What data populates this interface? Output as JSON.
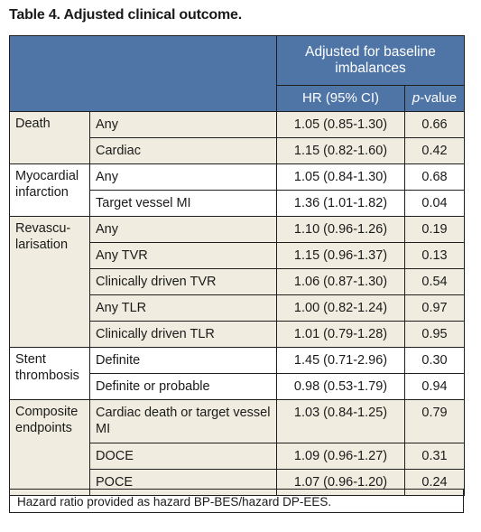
{
  "title": "Table 4. Adjusted clinical outcome.",
  "header": {
    "group_label": "Adjusted for baseline imbalances",
    "col_hr": "HR (95% CI)",
    "col_p_italic": "p",
    "col_p_rest": "-value"
  },
  "groups": [
    {
      "label": "Death",
      "rows": [
        {
          "outcome": "Any",
          "hr": "1.05 (0.85-1.30)",
          "p": "0.66"
        },
        {
          "outcome": "Cardiac",
          "hr": "1.15 (0.82-1.60)",
          "p": "0.42"
        }
      ]
    },
    {
      "label": "Myocardial infarction",
      "rows": [
        {
          "outcome": "Any",
          "hr": "1.05 (0.84-1.30)",
          "p": "0.68"
        },
        {
          "outcome": "Target vessel MI",
          "hr": "1.36 (1.01-1.82)",
          "p": "0.04"
        }
      ]
    },
    {
      "label": "Revascu-larisation",
      "rows": [
        {
          "outcome": "Any",
          "hr": "1.10 (0.96-1.26)",
          "p": "0.19"
        },
        {
          "outcome": "Any TVR",
          "hr": "1.15 (0.96-1.37)",
          "p": "0.13"
        },
        {
          "outcome": "Clinically driven TVR",
          "hr": "1.06 (0.87-1.30)",
          "p": "0.54"
        },
        {
          "outcome": "Any TLR",
          "hr": "1.00 (0.82-1.24)",
          "p": "0.97"
        },
        {
          "outcome": "Clinically driven TLR",
          "hr": "1.01 (0.79-1.28)",
          "p": "0.95"
        }
      ]
    },
    {
      "label": "Stent thrombosis",
      "rows": [
        {
          "outcome": "Definite",
          "hr": "1.45 (0.71-2.96)",
          "p": "0.30"
        },
        {
          "outcome": "Definite or probable",
          "hr": "0.98 (0.53-1.79)",
          "p": "0.94"
        }
      ]
    },
    {
      "label": "Composite endpoints",
      "rows": [
        {
          "outcome": "Cardiac death or target vessel MI",
          "hr": "1.03 (0.84-1.25)",
          "p": "0.79"
        },
        {
          "outcome": "DOCE",
          "hr": "1.09 (0.96-1.27)",
          "p": "0.31"
        },
        {
          "outcome": "POCE",
          "hr": "1.07 (0.96-1.20)",
          "p": "0.24"
        }
      ]
    }
  ],
  "footnote": "Hazard ratio provided as hazard BP-BES/hazard DP-EES.",
  "colors": {
    "header_bg": "#4f75a6",
    "band_tan": "#f0ede0",
    "band_white": "#ffffff"
  }
}
